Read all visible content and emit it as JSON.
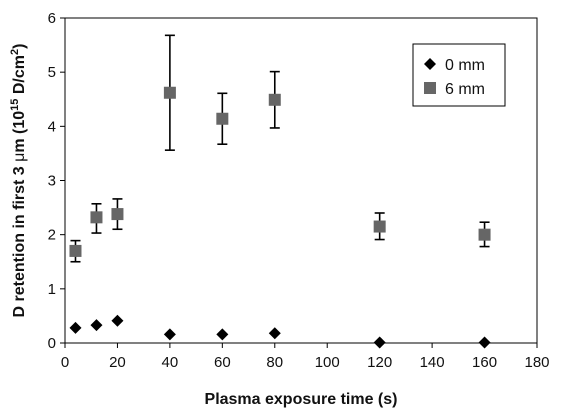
{
  "chart_data": {
    "type": "scatter",
    "xlabel": "Plasma exposure time (s)",
    "ylabel_parts": {
      "pre": "D retention in first 3 ",
      "mu": "μ",
      "post1": "m (10",
      "exp1": "15",
      "post2": " D/cm",
      "exp2": "2",
      "post3": ")"
    },
    "xlim": [
      0,
      180
    ],
    "ylim": [
      0,
      6
    ],
    "xticks": [
      0,
      20,
      40,
      60,
      80,
      100,
      120,
      140,
      160,
      180
    ],
    "yticks": [
      0,
      1,
      2,
      3,
      4,
      5,
      6
    ],
    "grid": false,
    "legend_position": "top-right",
    "series": [
      {
        "name": "0 mm",
        "marker": "diamond",
        "color": "#000000",
        "x": [
          4,
          12,
          20,
          40,
          60,
          80,
          120,
          160
        ],
        "y": [
          0.28,
          0.33,
          0.41,
          0.16,
          0.16,
          0.18,
          0.01,
          0.01
        ]
      },
      {
        "name": "6 mm",
        "marker": "square",
        "color": "#666666",
        "x": [
          4,
          12,
          20,
          40,
          60,
          80,
          120,
          160
        ],
        "y": [
          1.7,
          2.32,
          2.38,
          4.62,
          4.14,
          4.49,
          2.15,
          2.0
        ],
        "err_low": [
          1.5,
          2.03,
          2.1,
          3.56,
          3.67,
          3.97,
          1.91,
          1.78
        ],
        "err_high": [
          1.89,
          2.57,
          2.66,
          5.68,
          4.61,
          5.01,
          2.4,
          2.23
        ]
      }
    ]
  }
}
